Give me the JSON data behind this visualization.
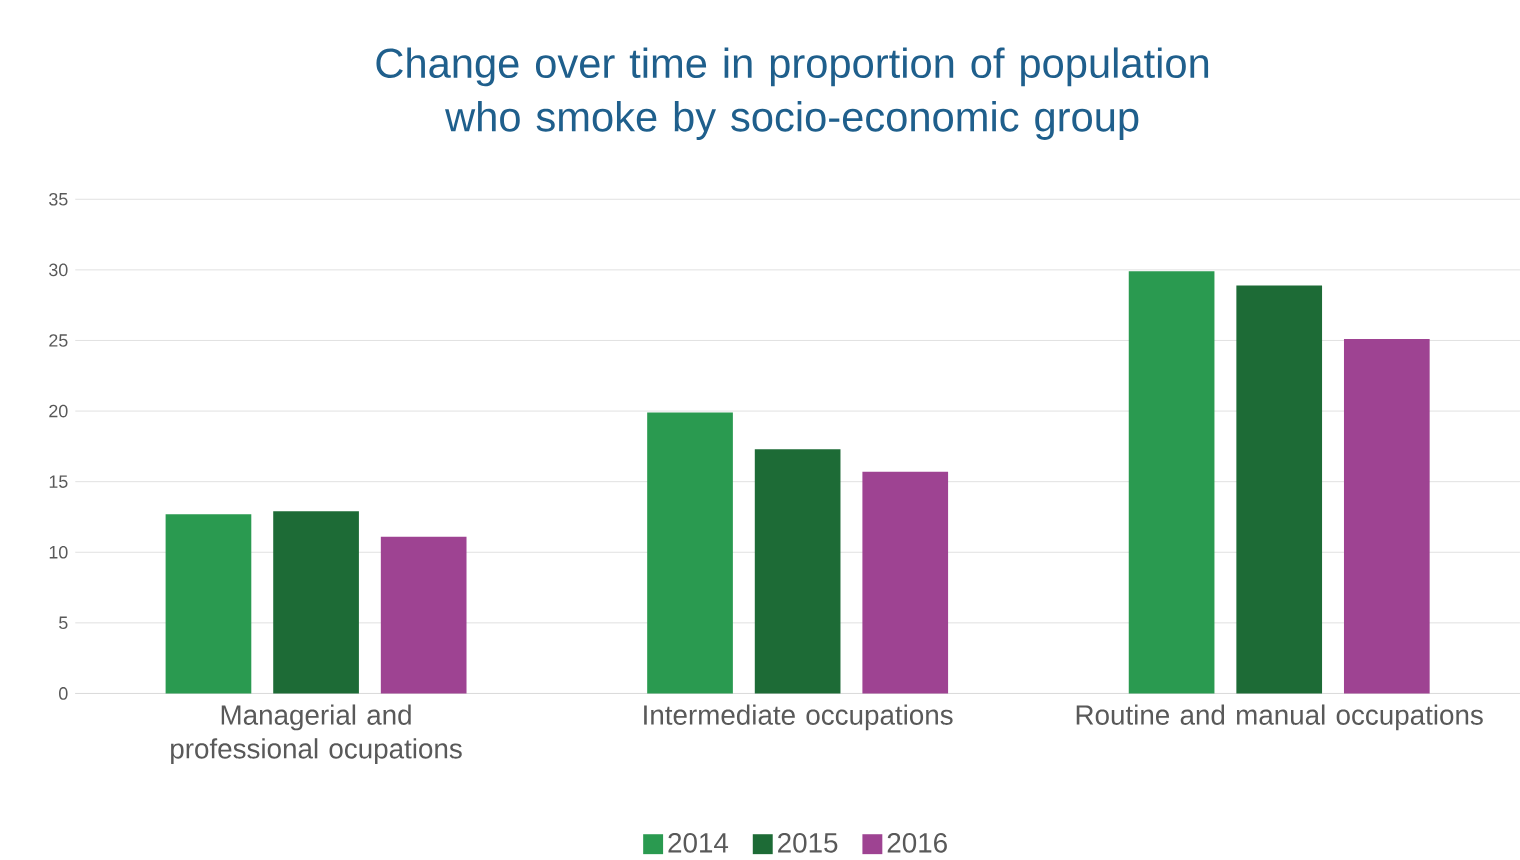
{
  "chart_data": {
    "type": "bar",
    "title": "Change over time in proportion of population who smoke by socio-economic group",
    "categories": [
      "Managerial and professional ocupations",
      "Intermediate occupations",
      "Routine and manual occupations"
    ],
    "series": [
      {
        "name": "2014",
        "color": "#2a9a50",
        "values": [
          12.7,
          19.9,
          29.9
        ]
      },
      {
        "name": "2015",
        "color": "#1d6b36",
        "values": [
          12.9,
          17.3,
          28.9
        ]
      },
      {
        "name": "2016",
        "color": "#9e4392",
        "values": [
          11.1,
          15.7,
          25.1
        ]
      }
    ],
    "ylim": [
      0,
      35
    ],
    "yticks": [
      0,
      5,
      10,
      15,
      20,
      25,
      30,
      35
    ],
    "grid": "y",
    "legend": "bottom"
  }
}
